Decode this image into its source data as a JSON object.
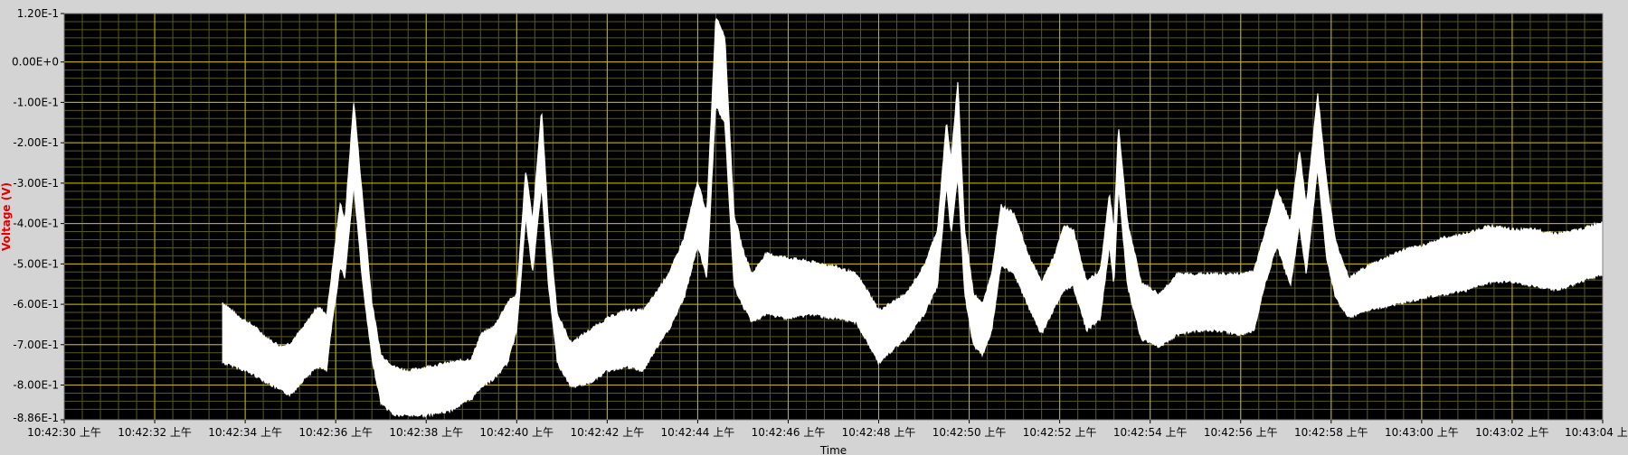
{
  "chart_data": {
    "type": "line",
    "title": "",
    "xlabel": "Time",
    "ylabel": "Voltage (V)",
    "x_unit": "seconds",
    "xlim": [
      0,
      34
    ],
    "ylim": [
      -0.886,
      0.12
    ],
    "x_ticks": [
      {
        "t": 0,
        "label": "10:42:30 上午"
      },
      {
        "t": 2,
        "label": "10:42:32 上午"
      },
      {
        "t": 4,
        "label": "10:42:34 上午"
      },
      {
        "t": 6,
        "label": "10:42:36 上午"
      },
      {
        "t": 8,
        "label": "10:42:38 上午"
      },
      {
        "t": 10,
        "label": "10:42:40 上午"
      },
      {
        "t": 12,
        "label": "10:42:42 上午"
      },
      {
        "t": 14,
        "label": "10:42:44 上午"
      },
      {
        "t": 16,
        "label": "10:42:46 上午"
      },
      {
        "t": 18,
        "label": "10:42:48 上午"
      },
      {
        "t": 20,
        "label": "10:42:50 上午"
      },
      {
        "t": 22,
        "label": "10:42:52 上午"
      },
      {
        "t": 24,
        "label": "10:42:54 上午"
      },
      {
        "t": 26,
        "label": "10:42:56 上午"
      },
      {
        "t": 28,
        "label": "10:42:58 上午"
      },
      {
        "t": 30,
        "label": "10:43:00 上午"
      },
      {
        "t": 32,
        "label": "10:43:02 上午"
      },
      {
        "t": 34,
        "label": "10:43:04 上"
      }
    ],
    "y_ticks": [
      {
        "v": 0.12,
        "label": "1.20E-1"
      },
      {
        "v": 0.0,
        "label": "0.00E+0"
      },
      {
        "v": -0.1,
        "label": "-1.00E-1"
      },
      {
        "v": -0.2,
        "label": "-2.00E-1"
      },
      {
        "v": -0.3,
        "label": "-3.00E-1"
      },
      {
        "v": -0.4,
        "label": "-4.00E-1"
      },
      {
        "v": -0.5,
        "label": "-5.00E-1"
      },
      {
        "v": -0.6,
        "label": "-6.00E-1"
      },
      {
        "v": -0.7,
        "label": "-7.00E-1"
      },
      {
        "v": -0.8,
        "label": "-8.00E-1"
      },
      {
        "v": -0.886,
        "label": "-8.86E-1"
      }
    ],
    "grid": true,
    "background_color": "#000000",
    "grid_major_color": "#c9b800",
    "grid_minor_color": "#5a5a14",
    "trace_color": "#ffffff",
    "series": [
      {
        "points": [
          [
            3.5,
            -0.6,
            -0.74
          ],
          [
            3.8,
            -0.63,
            -0.75
          ],
          [
            4.2,
            -0.66,
            -0.77
          ],
          [
            4.5,
            -0.69,
            -0.79
          ],
          [
            4.8,
            -0.71,
            -0.81
          ],
          [
            5.0,
            -0.7,
            -0.82
          ],
          [
            5.3,
            -0.66,
            -0.78
          ],
          [
            5.6,
            -0.61,
            -0.75
          ],
          [
            5.8,
            -0.63,
            -0.76
          ],
          [
            5.9,
            -0.54,
            -0.66
          ],
          [
            6.1,
            -0.35,
            -0.5
          ],
          [
            6.2,
            -0.4,
            -0.53
          ],
          [
            6.4,
            -0.1,
            -0.3
          ],
          [
            6.6,
            -0.35,
            -0.55
          ],
          [
            6.8,
            -0.6,
            -0.73
          ],
          [
            7.0,
            -0.73,
            -0.84
          ],
          [
            7.3,
            -0.76,
            -0.87
          ],
          [
            7.6,
            -0.77,
            -0.87
          ],
          [
            8.0,
            -0.76,
            -0.87
          ],
          [
            8.5,
            -0.75,
            -0.86
          ],
          [
            9.0,
            -0.74,
            -0.83
          ],
          [
            9.2,
            -0.68,
            -0.8
          ],
          [
            9.5,
            -0.66,
            -0.78
          ],
          [
            9.8,
            -0.6,
            -0.74
          ],
          [
            10.0,
            -0.58,
            -0.66
          ],
          [
            10.2,
            -0.27,
            -0.38
          ],
          [
            10.35,
            -0.4,
            -0.52
          ],
          [
            10.55,
            -0.12,
            -0.3
          ],
          [
            10.7,
            -0.4,
            -0.55
          ],
          [
            10.9,
            -0.63,
            -0.74
          ],
          [
            11.2,
            -0.7,
            -0.8
          ],
          [
            11.6,
            -0.67,
            -0.79
          ],
          [
            12.0,
            -0.64,
            -0.76
          ],
          [
            12.4,
            -0.62,
            -0.75
          ],
          [
            12.8,
            -0.62,
            -0.76
          ],
          [
            13.0,
            -0.59,
            -0.72
          ],
          [
            13.4,
            -0.52,
            -0.65
          ],
          [
            13.7,
            -0.44,
            -0.58
          ],
          [
            14.0,
            -0.3,
            -0.45
          ],
          [
            14.2,
            -0.38,
            -0.53
          ],
          [
            14.4,
            0.11,
            -0.1
          ],
          [
            14.6,
            0.06,
            -0.15
          ],
          [
            14.8,
            -0.38,
            -0.55
          ],
          [
            15.0,
            -0.47,
            -0.6
          ],
          [
            15.2,
            -0.53,
            -0.64
          ],
          [
            15.5,
            -0.48,
            -0.62
          ],
          [
            16.0,
            -0.49,
            -0.63
          ],
          [
            16.5,
            -0.5,
            -0.62
          ],
          [
            17.0,
            -0.51,
            -0.63
          ],
          [
            17.5,
            -0.53,
            -0.64
          ],
          [
            17.8,
            -0.58,
            -0.7
          ],
          [
            18.0,
            -0.62,
            -0.74
          ],
          [
            18.3,
            -0.6,
            -0.71
          ],
          [
            18.6,
            -0.58,
            -0.68
          ],
          [
            19.0,
            -0.51,
            -0.62
          ],
          [
            19.3,
            -0.42,
            -0.55
          ],
          [
            19.5,
            -0.15,
            -0.3
          ],
          [
            19.6,
            -0.25,
            -0.42
          ],
          [
            19.75,
            -0.05,
            -0.28
          ],
          [
            19.9,
            -0.42,
            -0.57
          ],
          [
            20.1,
            -0.58,
            -0.7
          ],
          [
            20.3,
            -0.6,
            -0.72
          ],
          [
            20.5,
            -0.53,
            -0.66
          ],
          [
            20.7,
            -0.36,
            -0.5
          ],
          [
            21.0,
            -0.38,
            -0.52
          ],
          [
            21.3,
            -0.48,
            -0.6
          ],
          [
            21.6,
            -0.55,
            -0.67
          ],
          [
            21.9,
            -0.48,
            -0.6
          ],
          [
            22.1,
            -0.41,
            -0.56
          ],
          [
            22.3,
            -0.42,
            -0.55
          ],
          [
            22.6,
            -0.55,
            -0.66
          ],
          [
            22.9,
            -0.52,
            -0.63
          ],
          [
            23.1,
            -0.33,
            -0.45
          ],
          [
            23.2,
            -0.42,
            -0.55
          ],
          [
            23.3,
            -0.16,
            -0.3
          ],
          [
            23.5,
            -0.4,
            -0.55
          ],
          [
            23.8,
            -0.55,
            -0.68
          ],
          [
            24.2,
            -0.58,
            -0.7
          ],
          [
            24.6,
            -0.53,
            -0.67
          ],
          [
            25.0,
            -0.53,
            -0.66
          ],
          [
            25.5,
            -0.53,
            -0.66
          ],
          [
            26.0,
            -0.53,
            -0.67
          ],
          [
            26.3,
            -0.52,
            -0.66
          ],
          [
            26.5,
            -0.44,
            -0.56
          ],
          [
            26.8,
            -0.32,
            -0.45
          ],
          [
            27.1,
            -0.4,
            -0.55
          ],
          [
            27.3,
            -0.22,
            -0.4
          ],
          [
            27.45,
            -0.36,
            -0.52
          ],
          [
            27.7,
            -0.08,
            -0.26
          ],
          [
            27.9,
            -0.3,
            -0.48
          ],
          [
            28.1,
            -0.45,
            -0.58
          ],
          [
            28.4,
            -0.54,
            -0.63
          ],
          [
            28.8,
            -0.51,
            -0.61
          ],
          [
            29.2,
            -0.49,
            -0.6
          ],
          [
            29.6,
            -0.47,
            -0.59
          ],
          [
            30.0,
            -0.46,
            -0.58
          ],
          [
            30.5,
            -0.44,
            -0.57
          ],
          [
            31.0,
            -0.43,
            -0.56
          ],
          [
            31.5,
            -0.41,
            -0.54
          ],
          [
            32.0,
            -0.42,
            -0.54
          ],
          [
            32.5,
            -0.42,
            -0.55
          ],
          [
            33.0,
            -0.43,
            -0.56
          ],
          [
            33.5,
            -0.42,
            -0.54
          ],
          [
            34.0,
            -0.4,
            -0.52
          ]
        ]
      }
    ]
  }
}
